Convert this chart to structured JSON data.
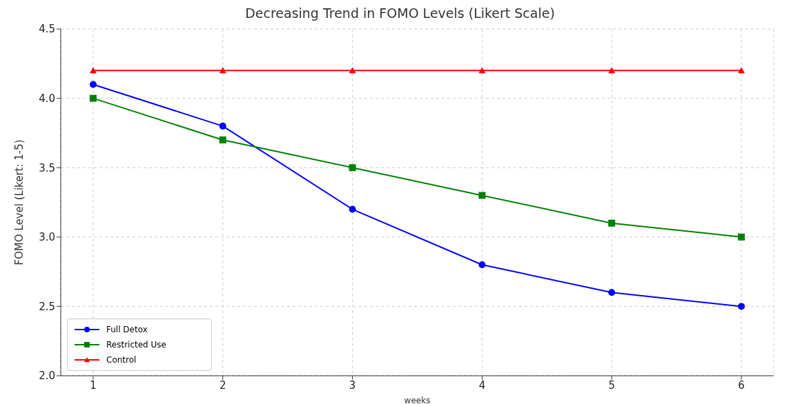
{
  "chart_data": {
    "type": "line",
    "title": "Decreasing Trend in FOMO Levels (Likert Scale)",
    "xlabel": "weeks",
    "ylabel": "FOMO Level (Likert: 1-5)",
    "x": [
      1,
      2,
      3,
      4,
      5,
      6
    ],
    "series": [
      {
        "name": "Full Detox",
        "color": "#0000ff",
        "marker": "circle",
        "values": [
          4.1,
          3.8,
          3.2,
          2.8,
          2.6,
          2.5
        ]
      },
      {
        "name": "Restricted Use",
        "color": "#008000",
        "marker": "square",
        "values": [
          4.0,
          3.7,
          3.5,
          3.3,
          3.1,
          3.0
        ]
      },
      {
        "name": "Control",
        "color": "#ff0000",
        "marker": "triangle",
        "values": [
          4.2,
          4.2,
          4.2,
          4.2,
          4.2,
          4.2
        ]
      }
    ],
    "xlim": [
      0.75,
      6.25
    ],
    "xticks": [
      1,
      2,
      3,
      4,
      5,
      6
    ],
    "ylim": [
      2.0,
      4.5
    ],
    "yticks": [
      {
        "value": 2.0,
        "label": "2.0"
      },
      {
        "value": 2.5,
        "label": "2.5"
      },
      {
        "value": 3.0,
        "label": "3.0"
      },
      {
        "value": 3.5,
        "label": "3.5"
      },
      {
        "value": 4.0,
        "label": "4.0"
      },
      {
        "value": 4.5,
        "label": "4.5"
      }
    ],
    "grid": true,
    "legend": "bottom left",
    "line_style": "solid"
  }
}
